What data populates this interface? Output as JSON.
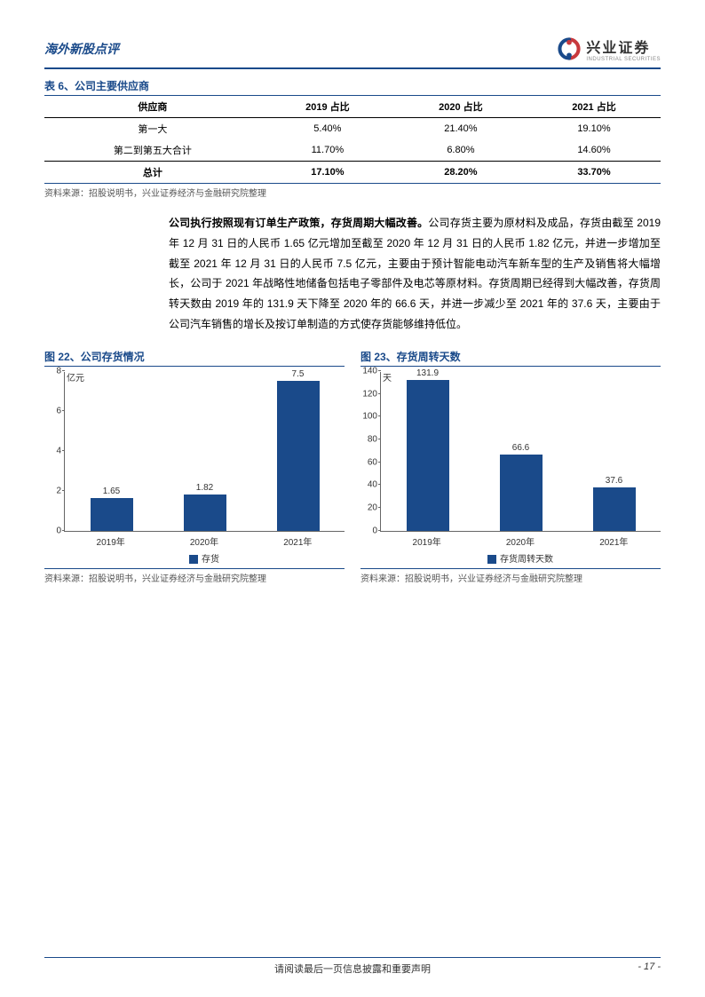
{
  "header": {
    "title": "海外新股点评",
    "logo_cn": "兴业证券",
    "logo_en": "INDUSTRIAL SECURITIES"
  },
  "table": {
    "title": "表 6、公司主要供应商",
    "columns": [
      "供应商",
      "2019 占比",
      "2020 占比",
      "2021 占比"
    ],
    "rows": [
      [
        "第一大",
        "5.40%",
        "21.40%",
        "19.10%"
      ],
      [
        "第二到第五大合计",
        "11.70%",
        "6.80%",
        "14.60%"
      ]
    ],
    "total_row": [
      "总计",
      "17.10%",
      "28.20%",
      "33.70%"
    ],
    "source": "资料来源：招股说明书，兴业证券经济与金融研究院整理"
  },
  "paragraph": {
    "bold": "公司执行按照现有订单生产政策，存货周期大幅改善。",
    "text": "公司存货主要为原材料及成品，存货由截至 2019 年 12 月 31 日的人民币 1.65 亿元增加至截至 2020 年 12 月 31 日的人民币 1.82 亿元，并进一步增加至截至 2021 年 12 月 31 日的人民币 7.5 亿元，主要由于预计智能电动汽车新车型的生产及销售将大幅增长，公司于 2021 年战略性地储备包括电子零部件及电芯等原材料。存货周期已经得到大幅改善，存货周转天数由 2019 年的 131.9 天下降至 2020 年的 66.6 天，并进一步减少至 2021 年的 37.6 天，主要由于公司汽车销售的增长及按订单制造的方式使存货能够维持低位。"
  },
  "chart22": {
    "title": "图 22、公司存货情况",
    "type": "bar",
    "unit": "亿元",
    "categories": [
      "2019年",
      "2020年",
      "2021年"
    ],
    "values": [
      1.65,
      1.82,
      7.5
    ],
    "ylim": [
      0,
      8
    ],
    "ytick_step": 2,
    "bar_color": "#1a4a8a",
    "legend": "存货",
    "source": "资料来源：招股说明书，兴业证券经济与金融研究院整理"
  },
  "chart23": {
    "title": "图 23、存货周转天数",
    "type": "bar",
    "unit": "天",
    "categories": [
      "2019年",
      "2020年",
      "2021年"
    ],
    "values": [
      131.9,
      66.6,
      37.6
    ],
    "ylim": [
      0,
      140
    ],
    "ytick_step": 20,
    "bar_color": "#1a4a8a",
    "legend": "存货周转天数",
    "source": "资料来源：招股说明书，兴业证券经济与金融研究院整理"
  },
  "footer": {
    "text": "请阅读最后一页信息披露和重要声明",
    "page": "- 17 -"
  }
}
